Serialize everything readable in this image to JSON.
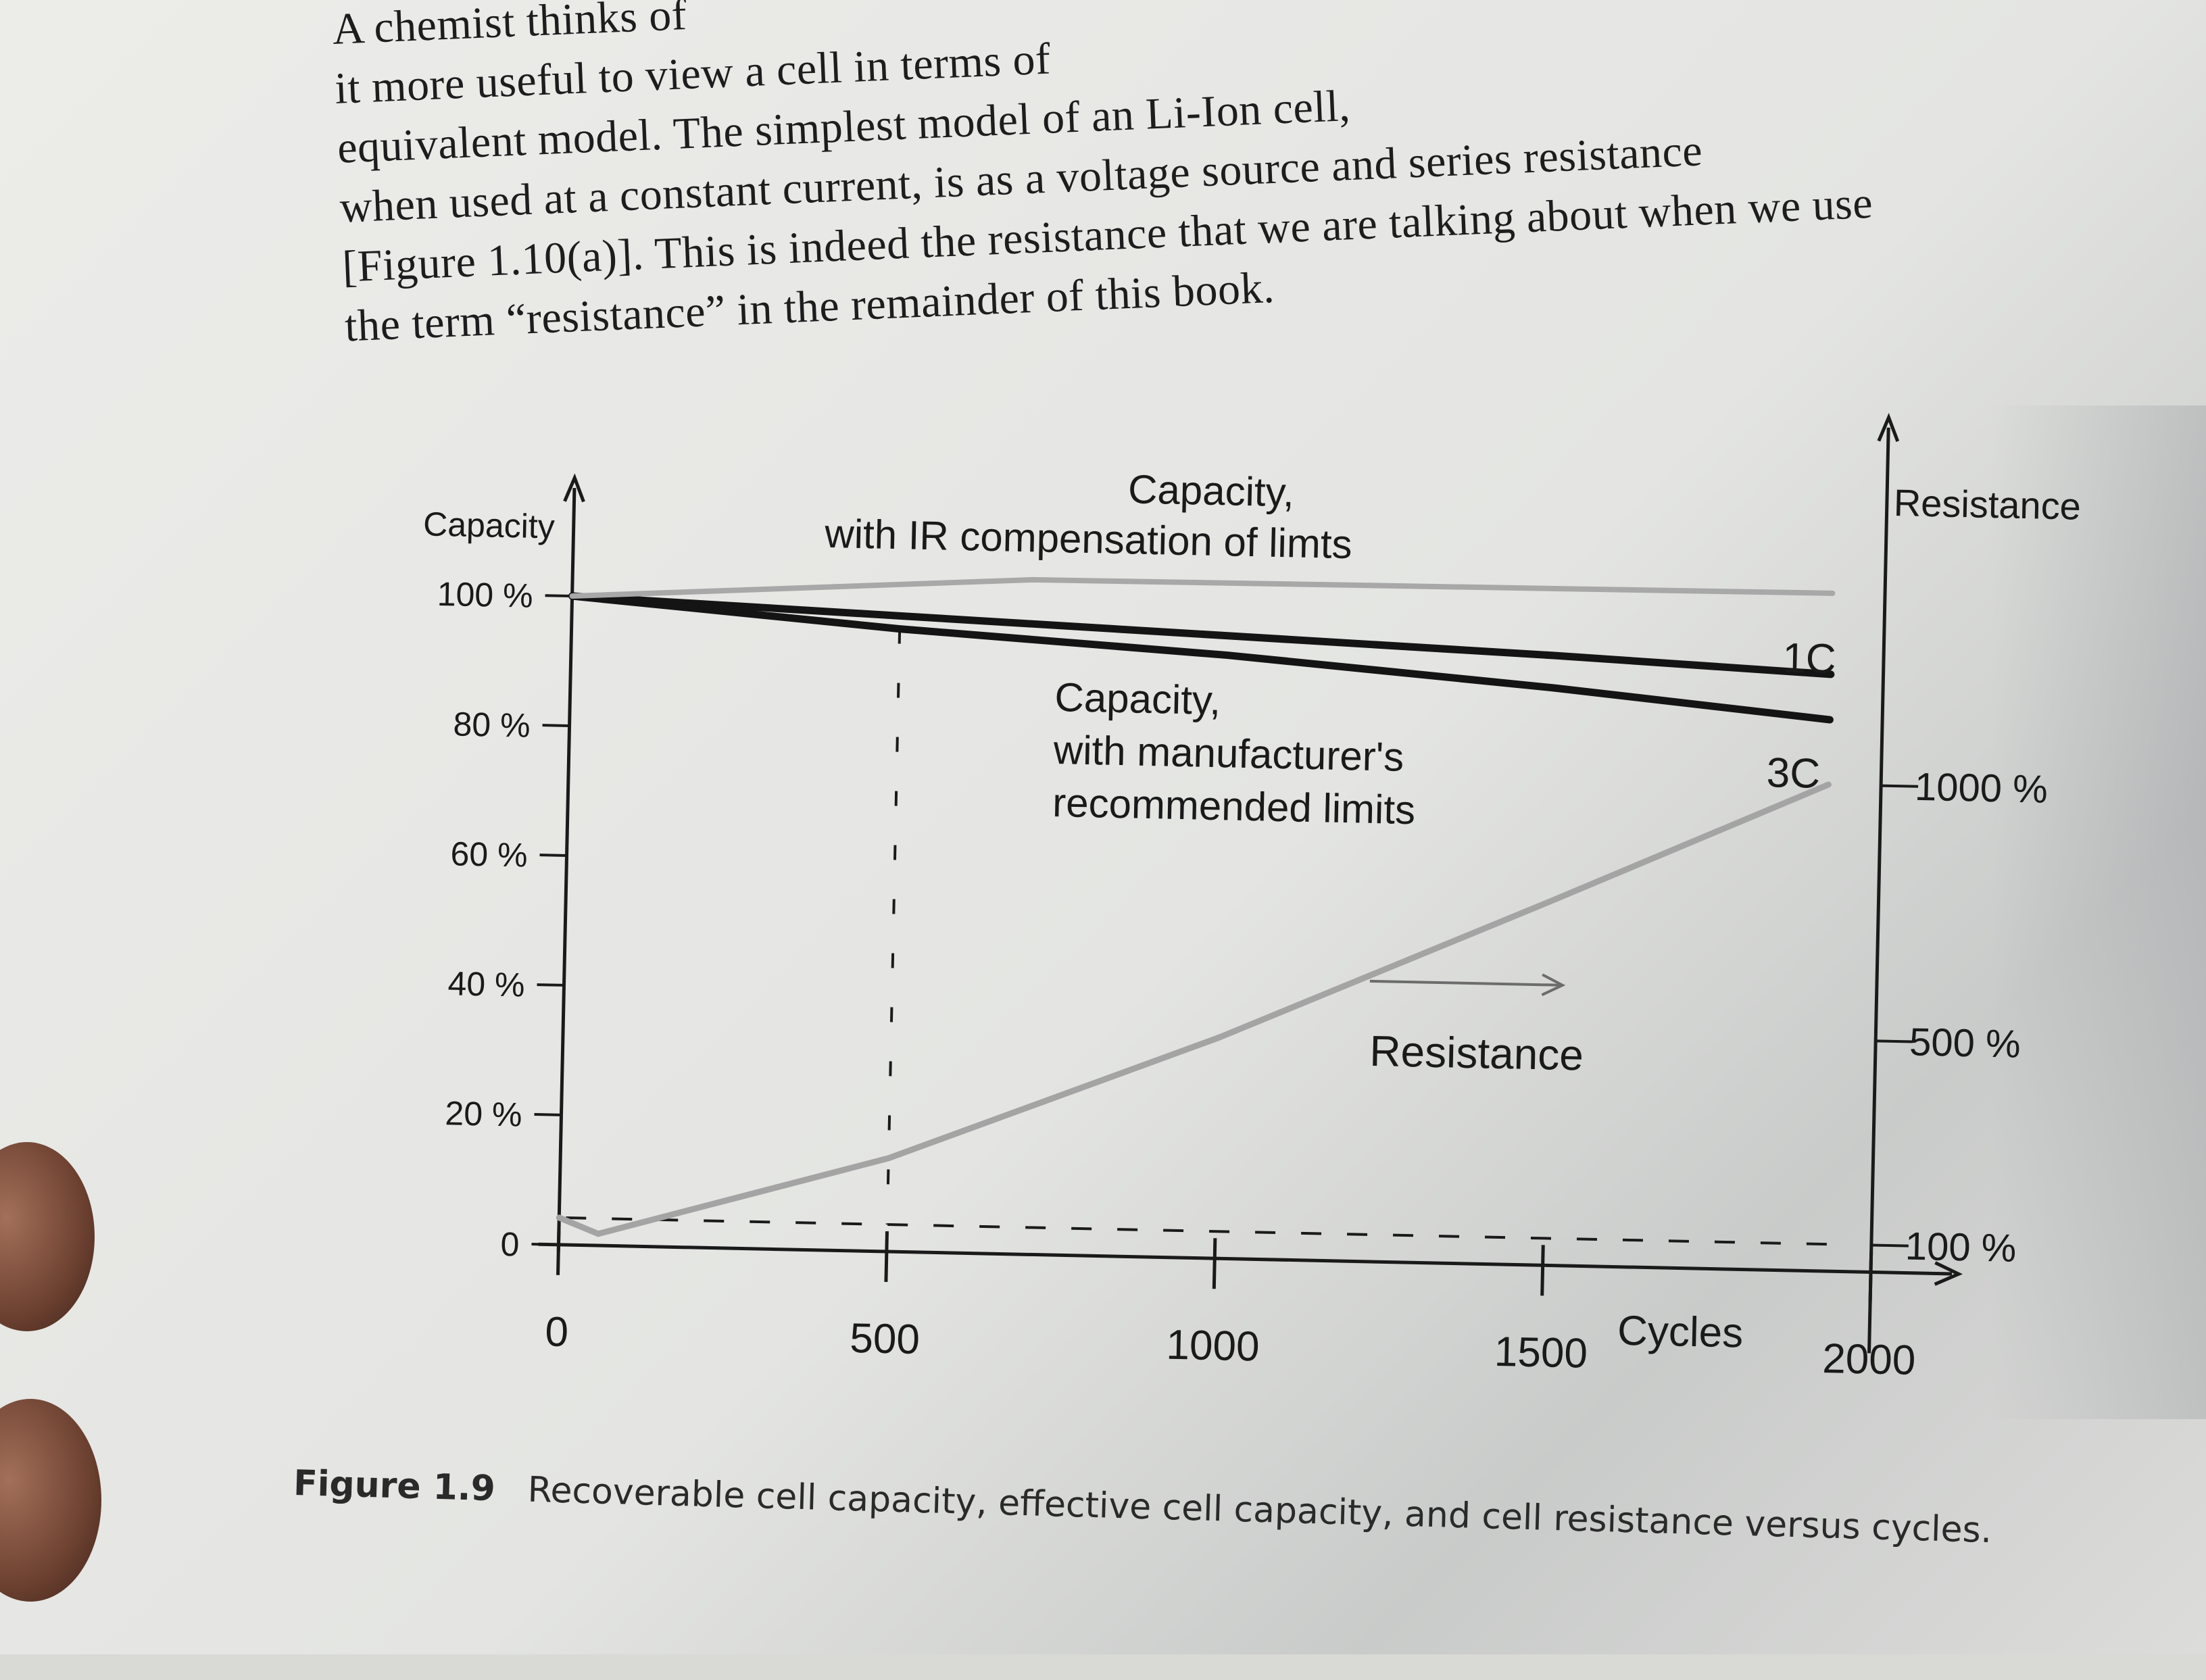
{
  "body_text": [
    "A chemist thinks of",
    "it more useful to view a cell in terms of",
    "equivalent model. The simplest model of an Li-Ion cell,",
    "when used at a constant current, is as a voltage source and series resistance",
    "[Figure 1.10(a)]. This is indeed the resistance that we are talking about when we use",
    "the term “resistance” in the remainder of this book."
  ],
  "caption": {
    "label": "Figure 1.9",
    "text": "Recoverable cell capacity, effective cell capacity, and cell resistance versus cycles."
  },
  "colors": {
    "capacity_line": "#141414",
    "ir_line": "#a8a8a8",
    "resistance_line": "#a4a4a4",
    "axis": "#1a1a1a",
    "text": "#1a1a1a"
  },
  "chart_data": {
    "type": "line",
    "xlabel": "Cycles",
    "ylabel_left": "Capacity",
    "ylabel_right": "Resistance",
    "xlim": [
      0,
      2000
    ],
    "ylim_left": [
      0,
      100
    ],
    "ylim_right": [
      0,
      1200
    ],
    "x_ticks": [
      "0",
      "500",
      "1000",
      "1500",
      "2000"
    ],
    "y_left_ticks": [
      "0",
      "20 %",
      "40 %",
      "60 %",
      "80 %",
      "100 %"
    ],
    "y_right_ticks": [
      "100 %",
      "500 %",
      "1000 %"
    ],
    "grid": false,
    "annotations": {
      "ir_capacity": "Capacity,\nwith IR compensation of limts",
      "manufacturer_capacity": "Capacity,\nwith manufacturer's\nrecommended limits",
      "resistance": "Resistance",
      "label_1c": "1C",
      "label_3c": "3C"
    },
    "reference_lines": {
      "vertical_x": 500,
      "horizontal_resistance": 100
    },
    "series": [
      {
        "name": "1C",
        "axis": "left",
        "x": [
          0,
          500,
          1000,
          1500,
          1920
        ],
        "y": [
          100,
          98,
          96,
          94,
          92
        ]
      },
      {
        "name": "3C",
        "axis": "left",
        "x": [
          0,
          500,
          1000,
          1500,
          1920
        ],
        "y": [
          100,
          96,
          93,
          89,
          85
        ]
      },
      {
        "name": "Capacity, with IR compensation of limts",
        "axis": "left",
        "x": [
          0,
          1000,
          1920
        ],
        "y": [
          100,
          100,
          100
        ]
      },
      {
        "name": "Resistance",
        "axis": "right",
        "x": [
          0,
          60,
          500,
          1000,
          1500,
          1920
        ],
        "y": [
          100,
          70,
          230,
          480,
          760,
          1000
        ]
      }
    ]
  }
}
